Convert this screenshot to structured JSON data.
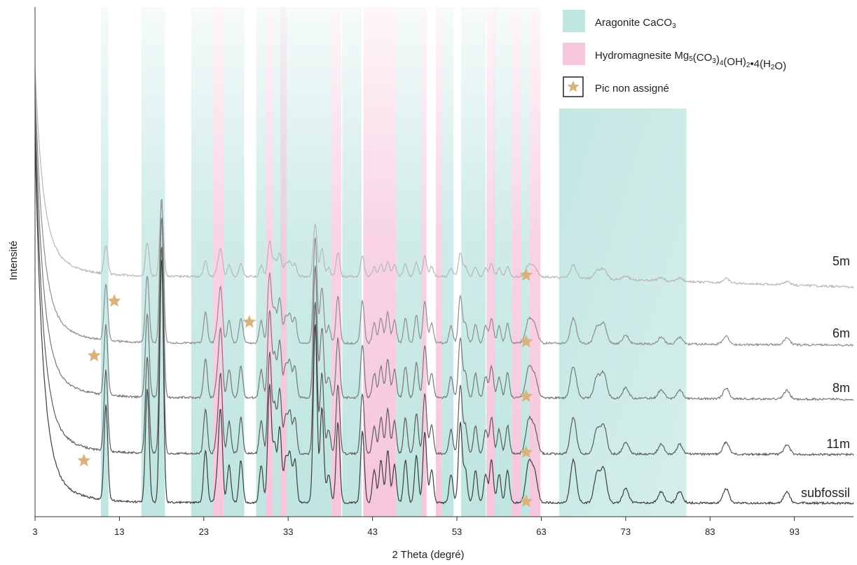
{
  "chart_data": {
    "type": "line",
    "xlabel": "2 Theta (degré)",
    "ylabel": "Intensité",
    "xlim": [
      3,
      100
    ],
    "xticks": [
      "3",
      "13",
      "23",
      "33",
      "43",
      "53",
      "63",
      "73",
      "83",
      "93"
    ],
    "legend": {
      "position": "top-right",
      "items": [
        {
          "id": "aragonite",
          "label_main": "Aragonite CaCO",
          "label_parts": [
            [
              "Aragonite CaCO",
              false
            ],
            [
              "3",
              true
            ]
          ],
          "color": "#bfe5e1",
          "marker": "swatch"
        },
        {
          "id": "hydromagnesite",
          "label_parts": [
            [
              "Hydromagnesite Mg",
              false
            ],
            [
              "5",
              true
            ],
            [
              "(CO",
              false
            ],
            [
              "3",
              true
            ],
            [
              ")",
              false
            ],
            [
              "4",
              true
            ],
            [
              "(OH)",
              false
            ],
            [
              "2",
              true
            ],
            [
              "•4(H",
              false
            ],
            [
              "2",
              true
            ],
            [
              "O)",
              false
            ]
          ],
          "color": "#f6c6dc",
          "marker": "swatch"
        },
        {
          "id": "unassigned",
          "label_parts": [
            [
              "Pic non assigné",
              false
            ]
          ],
          "color": "#d9b27c",
          "marker": "star"
        }
      ]
    },
    "phase_bands": {
      "aragonite": [
        [
          10.8,
          11.7
        ],
        [
          15.6,
          18.4
        ],
        [
          21.5,
          24.1
        ],
        [
          25.4,
          27.8
        ],
        [
          29.2,
          30.4
        ],
        [
          31.2,
          33.2
        ],
        [
          33.2,
          38.1
        ],
        [
          39.4,
          41.7
        ],
        [
          45.8,
          48.8
        ],
        [
          51.2,
          52.6
        ],
        [
          53.5,
          56.4
        ],
        [
          57.4,
          59.5
        ],
        [
          60.6,
          61.6
        ],
        [
          65.1,
          80.2
        ]
      ],
      "hydromagnesite": [
        [
          24.1,
          25.4
        ],
        [
          30.4,
          31.2
        ],
        [
          32.1,
          32.8
        ],
        [
          38.1,
          39.3
        ],
        [
          41.9,
          45.8
        ],
        [
          48.8,
          49.4
        ],
        [
          50.5,
          51.2
        ],
        [
          56.5,
          57.5
        ],
        [
          59.5,
          60.6
        ],
        [
          61.6,
          62.9
        ]
      ]
    },
    "series": [
      {
        "name": "5m",
        "color": "#b7b7b7",
        "unassigned_peaks": [
          61.2
        ]
      },
      {
        "name": "6m",
        "color": "#8e8e8e",
        "unassigned_peaks": [
          12.4,
          28.4,
          61.2
        ]
      },
      {
        "name": "8m",
        "color": "#777777",
        "unassigned_peaks": [
          10.0,
          61.2
        ]
      },
      {
        "name": "11m",
        "color": "#5b5b5b",
        "unassigned_peaks": [
          61.2
        ]
      },
      {
        "name": "subfossil",
        "color": "#3e3e3e",
        "unassigned_peaks": [
          8.8,
          61.2
        ]
      }
    ],
    "peaks_2theta": [
      [
        11.4,
        1.0
      ],
      [
        16.3,
        1.2
      ],
      [
        18.0,
        2.6
      ],
      [
        23.2,
        0.55
      ],
      [
        24.6,
        0.25
      ],
      [
        25.0,
        0.95
      ],
      [
        26.0,
        0.4
      ],
      [
        27.4,
        0.45
      ],
      [
        29.8,
        0.4
      ],
      [
        30.8,
        1.25
      ],
      [
        31.4,
        0.6
      ],
      [
        32.0,
        0.8
      ],
      [
        32.7,
        0.45
      ],
      [
        33.2,
        0.5
      ],
      [
        33.8,
        0.45
      ],
      [
        36.2,
        1.9
      ],
      [
        37.0,
        1.0
      ],
      [
        37.8,
        0.3
      ],
      [
        38.9,
        0.85
      ],
      [
        41.8,
        0.75
      ],
      [
        43.2,
        0.35
      ],
      [
        44.0,
        0.45
      ],
      [
        44.8,
        0.55
      ],
      [
        45.6,
        0.4
      ],
      [
        46.9,
        0.45
      ],
      [
        48.2,
        0.5
      ],
      [
        49.2,
        0.75
      ],
      [
        50.0,
        0.35
      ],
      [
        52.3,
        0.3
      ],
      [
        53.4,
        0.85
      ],
      [
        54.0,
        0.35
      ],
      [
        55.2,
        0.35
      ],
      [
        56.4,
        0.3
      ],
      [
        57.1,
        0.45
      ],
      [
        58.0,
        0.3
      ],
      [
        59.0,
        0.35
      ],
      [
        61.5,
        0.4
      ],
      [
        62.2,
        0.3
      ],
      [
        66.8,
        0.45
      ],
      [
        69.6,
        0.3
      ],
      [
        70.4,
        0.35
      ],
      [
        73.0,
        0.15
      ],
      [
        77.2,
        0.12
      ],
      [
        79.4,
        0.12
      ],
      [
        84.9,
        0.15
      ],
      [
        92.1,
        0.12
      ]
    ]
  }
}
